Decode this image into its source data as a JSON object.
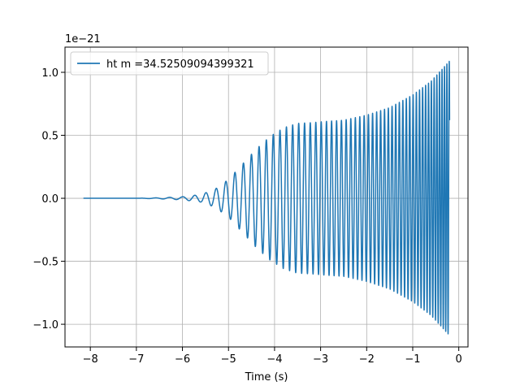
{
  "chart_data": {
    "type": "line",
    "title": "",
    "xlabel": "Time (s)",
    "ylabel": "",
    "y_offset_label": "1e−21",
    "xlim": [
      -8.55,
      0.2
    ],
    "ylim": [
      -1.18,
      1.2
    ],
    "x_ticks": [
      -8,
      -7,
      -6,
      -5,
      -4,
      -3,
      -2,
      -1,
      0
    ],
    "x_tick_labels": [
      "−8",
      "−7",
      "−6",
      "−5",
      "−4",
      "−3",
      "−2",
      "−1",
      "0"
    ],
    "y_ticks": [
      -1.0,
      -0.5,
      0.0,
      0.5,
      1.0
    ],
    "y_tick_labels": [
      "−1.0",
      "−0.5",
      "0.0",
      "0.5",
      "1.0"
    ],
    "grid": true,
    "legend_position": "top-left",
    "line_color": "#1f77b4",
    "series": [
      {
        "name": "ht m =34.52509094399321",
        "x_start": -8.15,
        "x_end": -0.2,
        "end_value": 0.62,
        "envelope": [
          [
            -8.15,
            0.0
          ],
          [
            -7.0,
            0.0
          ],
          [
            -6.5,
            0.004
          ],
          [
            -6.0,
            0.012
          ],
          [
            -5.6,
            0.03
          ],
          [
            -5.3,
            0.07
          ],
          [
            -5.0,
            0.15
          ],
          [
            -4.7,
            0.27
          ],
          [
            -4.4,
            0.39
          ],
          [
            -4.1,
            0.49
          ],
          [
            -3.8,
            0.56
          ],
          [
            -3.5,
            0.595
          ],
          [
            -3.2,
            0.6
          ],
          [
            -2.9,
            0.61
          ],
          [
            -2.5,
            0.62
          ],
          [
            -2.0,
            0.66
          ],
          [
            -1.5,
            0.72
          ],
          [
            -1.0,
            0.82
          ],
          [
            -0.6,
            0.93
          ],
          [
            -0.35,
            1.03
          ],
          [
            -0.2,
            1.09
          ]
        ],
        "frequency": [
          [
            -8.15,
            2.2
          ],
          [
            -6.0,
            3.6
          ],
          [
            -5.0,
            5.0
          ],
          [
            -4.0,
            6.8
          ],
          [
            -3.0,
            8.6
          ],
          [
            -2.0,
            10.8
          ],
          [
            -1.0,
            13.8
          ],
          [
            -0.5,
            17.0
          ],
          [
            -0.2,
            20.0
          ]
        ]
      }
    ]
  }
}
